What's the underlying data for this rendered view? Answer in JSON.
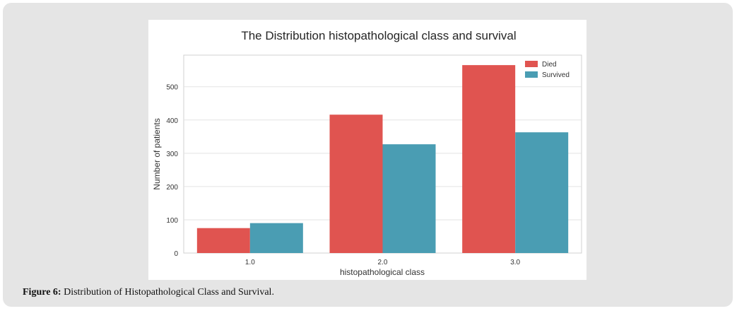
{
  "caption": {
    "label": "Figure 6:",
    "text": " Distribution of Histopathological Class and Survival."
  },
  "chart_data": {
    "type": "bar",
    "title": "The Distribution histopathological class and survival",
    "xlabel": "histopathological class",
    "ylabel": "Number of patients",
    "categories": [
      "1.0",
      "2.0",
      "3.0"
    ],
    "series": [
      {
        "name": "Died",
        "color": "#e05450",
        "values": [
          75,
          416,
          565
        ]
      },
      {
        "name": "Survived",
        "color": "#4a9db3",
        "values": [
          90,
          327,
          363
        ]
      }
    ],
    "ylim": [
      0,
      595
    ],
    "yticks": [
      0,
      100,
      200,
      300,
      400,
      500
    ],
    "grid": true,
    "legend_position": "top-right"
  }
}
